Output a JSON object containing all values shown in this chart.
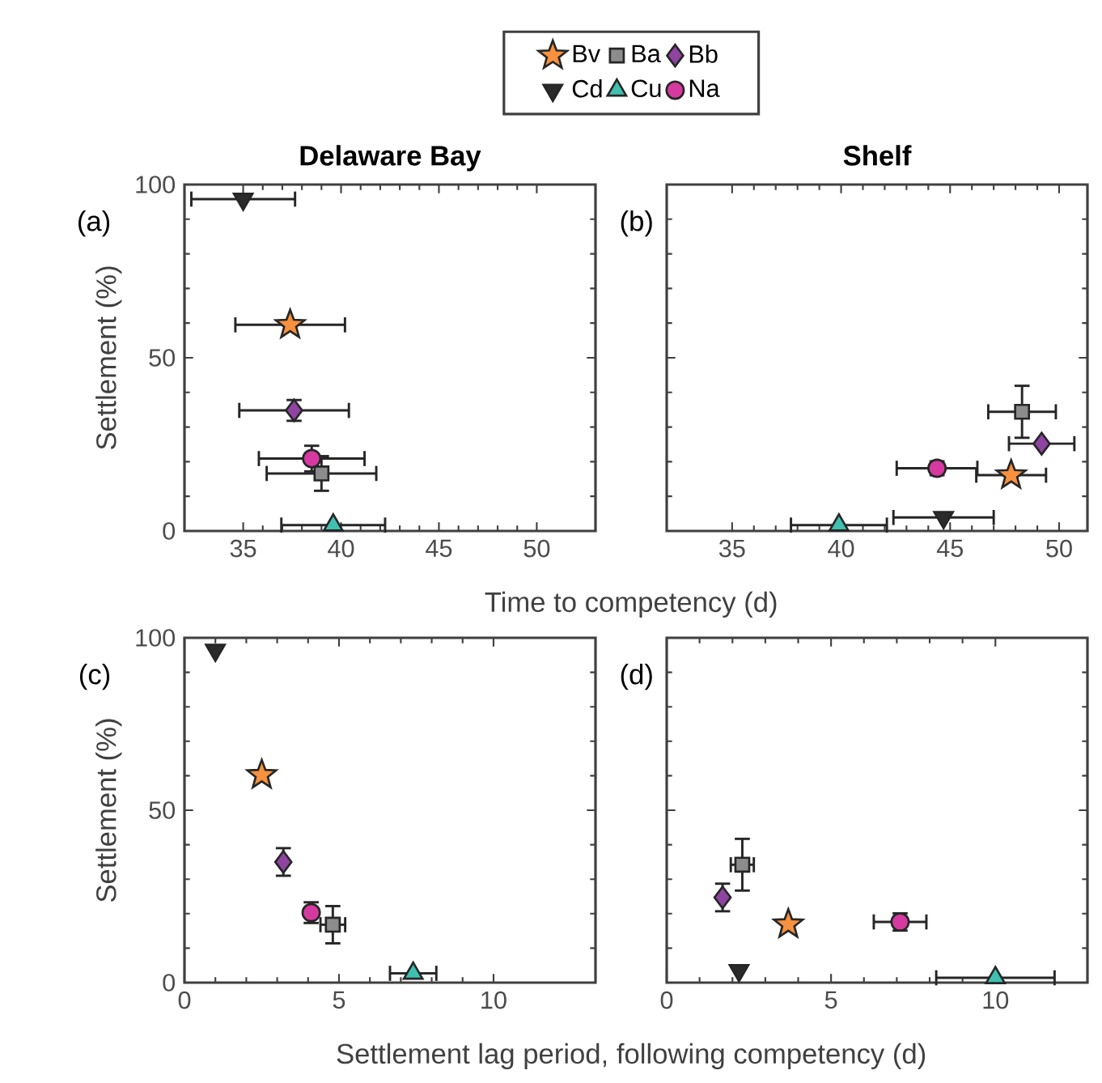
{
  "chart_data": [
    {
      "type": "scatter",
      "title": "Delaware Bay",
      "ylabel": "Settlement (%)",
      "xlabel": "Time to competency (d)",
      "annotations": [
        "(a)"
      ],
      "xlim": [
        32,
        53
      ],
      "xticks": [
        35,
        40,
        45,
        50
      ],
      "ylim": [
        0,
        100
      ],
      "yticks": [
        0,
        50,
        100
      ],
      "grid": false,
      "legend": "top",
      "series": [
        {
          "name": "Bv",
          "color": "#f7913d",
          "marker": "star",
          "x": [
            37.4
          ],
          "values": [
            59.5
          ],
          "xerrors": [
            2.8
          ],
          "errors": [
            null
          ]
        },
        {
          "name": "Ba",
          "color": "#8c8c8c",
          "marker": "square",
          "x": [
            39.0
          ],
          "values": [
            16.6
          ],
          "xerrors": [
            2.8
          ],
          "errors": [
            5
          ]
        },
        {
          "name": "Bb",
          "color": "#8e44a0",
          "marker": "diamond",
          "x": [
            37.6
          ],
          "values": [
            34.8
          ],
          "xerrors": [
            2.8
          ],
          "errors": [
            3
          ]
        },
        {
          "name": "Cd",
          "color": "#2b2b2b",
          "marker": "triangle-down",
          "x": [
            35.0
          ],
          "values": [
            95.8
          ],
          "xerrors": [
            2.65
          ],
          "errors": [
            null
          ]
        },
        {
          "name": "Cu",
          "color": "#40c0b0",
          "marker": "triangle",
          "x": [
            39.6
          ],
          "values": [
            1.7
          ],
          "xerrors": [
            2.65
          ],
          "errors": [
            null
          ]
        },
        {
          "name": "Na",
          "color": "#d63aa0",
          "marker": "circle",
          "x": [
            38.5
          ],
          "values": [
            20.9
          ],
          "xerrors": [
            2.7
          ],
          "errors": [
            3.7
          ]
        }
      ]
    },
    {
      "type": "scatter",
      "title": "Shelf",
      "annotations": [
        "(b)"
      ],
      "xlim": [
        32,
        51.3
      ],
      "xticks": [
        35,
        40,
        45,
        50
      ],
      "ylim": [
        0,
        100
      ],
      "yticks": [
        0,
        50,
        100
      ],
      "tick_labels": "x",
      "grid": false,
      "series": [
        {
          "color": "#f7913d",
          "marker": "star",
          "x": [
            47.8
          ],
          "values": [
            16.1
          ],
          "xerrors": [
            1.6
          ],
          "errors": [
            null
          ]
        },
        {
          "color": "#8c8c8c",
          "marker": "square",
          "x": [
            48.3
          ],
          "values": [
            34.4
          ],
          "xerrors": [
            1.55
          ],
          "errors": [
            7.5
          ]
        },
        {
          "color": "#8e44a0",
          "marker": "diamond",
          "x": [
            49.2
          ],
          "values": [
            25.2
          ],
          "xerrors": [
            1.5
          ],
          "errors": [
            null
          ]
        },
        {
          "color": "#2b2b2b",
          "marker": "triangle-down",
          "x": [
            44.7
          ],
          "values": [
            3.9
          ],
          "xerrors": [
            2.3
          ],
          "errors": [
            null
          ]
        },
        {
          "color": "#40c0b0",
          "marker": "triangle",
          "x": [
            39.9
          ],
          "values": [
            1.7
          ],
          "xerrors": [
            2.2
          ],
          "errors": [
            null
          ]
        },
        {
          "color": "#d63aa0",
          "marker": "circle",
          "x": [
            44.4
          ],
          "values": [
            18.1
          ],
          "xerrors": [
            1.85
          ],
          "errors": [
            2
          ]
        }
      ]
    },
    {
      "type": "scatter",
      "ylabel": "Settlement (%)",
      "xlabel": "Settlement lag period, following competency (d)",
      "annotations": [
        "(c)"
      ],
      "xlim": [
        0,
        13.3
      ],
      "xticks": [
        0,
        5,
        10
      ],
      "ylim": [
        0,
        100
      ],
      "yticks": [
        0,
        50,
        100
      ],
      "grid": false,
      "series": [
        {
          "color": "#f7913d",
          "marker": "star",
          "x": [
            2.5
          ],
          "values": [
            60.2
          ],
          "xerrors": [
            null
          ],
          "errors": [
            null
          ]
        },
        {
          "color": "#8c8c8c",
          "marker": "square",
          "x": [
            4.8
          ],
          "values": [
            16.8
          ],
          "xerrors": [
            0.4
          ],
          "errors": [
            5.4
          ]
        },
        {
          "color": "#8e44a0",
          "marker": "diamond",
          "x": [
            3.2
          ],
          "values": [
            35.0
          ],
          "xerrors": [
            null
          ],
          "errors": [
            4
          ]
        },
        {
          "color": "#2b2b2b",
          "marker": "triangle-down",
          "x": [
            1.0
          ],
          "values": [
            96.4
          ],
          "xerrors": [
            null
          ],
          "errors": [
            null
          ]
        },
        {
          "color": "#40c0b0",
          "marker": "triangle",
          "x": [
            7.4
          ],
          "values": [
            2.7
          ],
          "xerrors": [
            0.75
          ],
          "errors": [
            null
          ]
        },
        {
          "color": "#d63aa0",
          "marker": "circle",
          "x": [
            4.1
          ],
          "values": [
            20.3
          ],
          "xerrors": [
            null
          ],
          "errors": [
            3
          ]
        }
      ]
    },
    {
      "type": "scatter",
      "annotations": [
        "(d)"
      ],
      "xlim": [
        0,
        12.8
      ],
      "xticks": [
        0,
        5,
        10
      ],
      "ylim": [
        0,
        100
      ],
      "yticks": [
        0,
        50,
        100
      ],
      "tick_labels": "x",
      "grid": false,
      "series": [
        {
          "color": "#f7913d",
          "marker": "star",
          "x": [
            3.7
          ],
          "values": [
            16.9
          ],
          "xerrors": [
            null
          ],
          "errors": [
            null
          ]
        },
        {
          "color": "#8c8c8c",
          "marker": "square",
          "x": [
            2.3
          ],
          "values": [
            34.2
          ],
          "xerrors": [
            0.35
          ],
          "errors": [
            7.5
          ]
        },
        {
          "color": "#8e44a0",
          "marker": "diamond",
          "x": [
            1.7
          ],
          "values": [
            24.7
          ],
          "xerrors": [
            null
          ],
          "errors": [
            4
          ]
        },
        {
          "color": "#2b2b2b",
          "marker": "triangle-down",
          "x": [
            2.2
          ],
          "values": [
            3.5
          ],
          "xerrors": [
            null
          ],
          "errors": [
            null
          ]
        },
        {
          "color": "#40c0b0",
          "marker": "triangle",
          "x": [
            10.0
          ],
          "values": [
            1.4
          ],
          "xerrors": [
            1.8
          ],
          "errors": [
            null
          ]
        },
        {
          "color": "#d63aa0",
          "marker": "circle",
          "x": [
            7.1
          ],
          "values": [
            17.6
          ],
          "xerrors": [
            0.8
          ],
          "errors": [
            2.5
          ]
        }
      ]
    }
  ]
}
